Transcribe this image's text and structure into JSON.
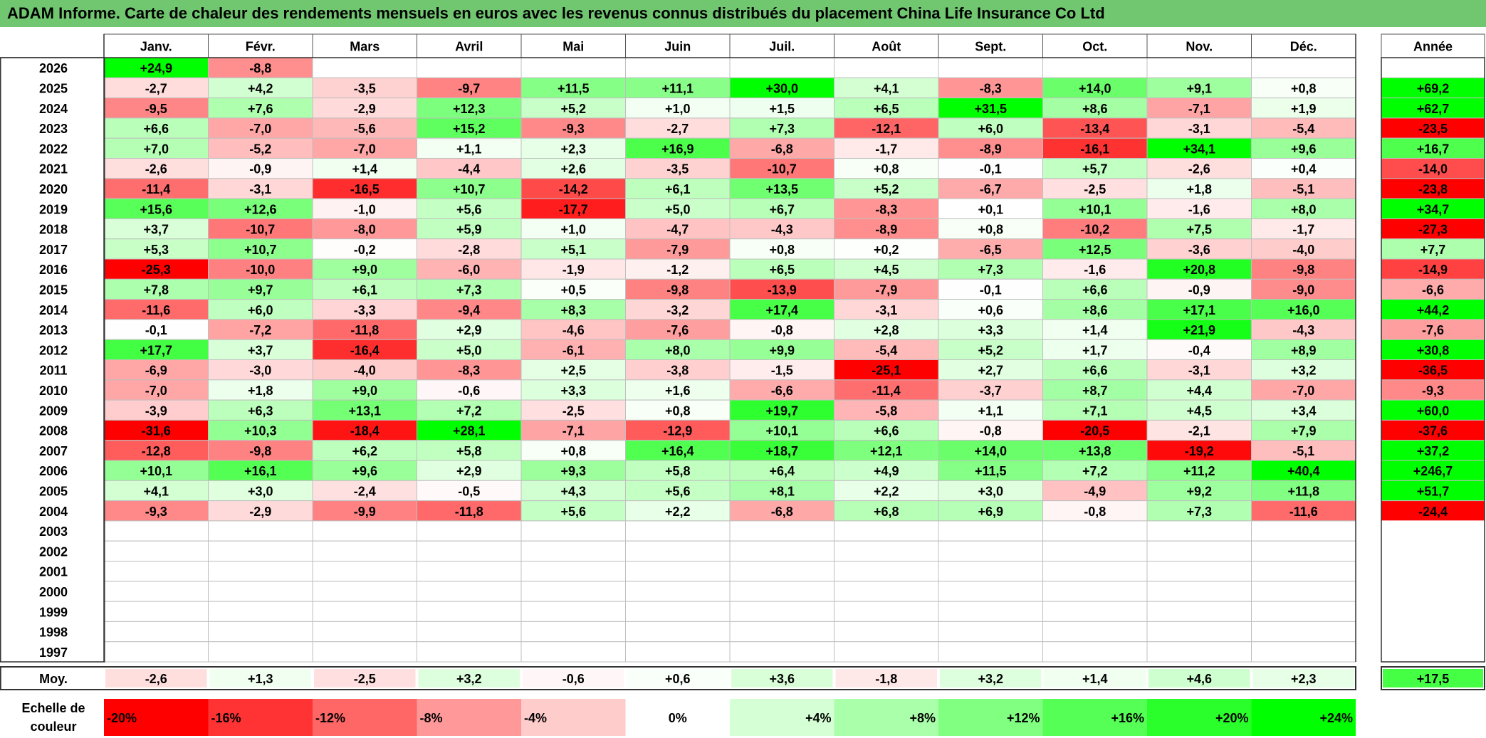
{
  "title": "ADAM Informe. Carte de chaleur des rendements mensuels en euros avec les revenus connus distribués du placement China Life Insurance Co Ltd",
  "chart_data": {
    "type": "heatmap",
    "title": "ADAM Informe. Carte de chaleur des rendements mensuels en euros avec les revenus connus distribués du placement China Life Insurance Co Ltd",
    "months": [
      "Janv.",
      "Févr.",
      "Mars",
      "Avril",
      "Mai",
      "Juin",
      "Juil.",
      "Août",
      "Sept.",
      "Oct.",
      "Nov.",
      "Déc."
    ],
    "year_header": "Année",
    "rows": [
      {
        "year": "2026",
        "values": [
          "+24,9",
          "-8,8",
          "",
          "",
          "",
          "",
          "",
          "",
          "",
          "",
          "",
          ""
        ],
        "annual": ""
      },
      {
        "year": "2025",
        "values": [
          "-2,7",
          "+4,2",
          "-3,5",
          "-9,7",
          "+11,5",
          "+11,1",
          "+30,0",
          "+4,1",
          "-8,3",
          "+14,0",
          "+9,1",
          "+0,8"
        ],
        "annual": "+69,2"
      },
      {
        "year": "2024",
        "values": [
          "-9,5",
          "+7,6",
          "-2,9",
          "+12,3",
          "+5,2",
          "+1,0",
          "+1,5",
          "+6,5",
          "+31,5",
          "+8,6",
          "-7,1",
          "+1,9"
        ],
        "annual": "+62,7"
      },
      {
        "year": "2023",
        "values": [
          "+6,6",
          "-7,0",
          "-5,6",
          "+15,2",
          "-9,3",
          "-2,7",
          "+7,3",
          "-12,1",
          "+6,0",
          "-13,4",
          "-3,1",
          "-5,4"
        ],
        "annual": "-23,5"
      },
      {
        "year": "2022",
        "values": [
          "+7,0",
          "-5,2",
          "-7,0",
          "+1,1",
          "+2,3",
          "+16,9",
          "-6,8",
          "-1,7",
          "-8,9",
          "-16,1",
          "+34,1",
          "+9,6"
        ],
        "annual": "+16,7"
      },
      {
        "year": "2021",
        "values": [
          "-2,6",
          "-0,9",
          "+1,4",
          "-4,4",
          "+2,6",
          "-3,5",
          "-10,7",
          "+0,8",
          "-0,1",
          "+5,7",
          "-2,6",
          "+0,4"
        ],
        "annual": "-14,0"
      },
      {
        "year": "2020",
        "values": [
          "-11,4",
          "-3,1",
          "-16,5",
          "+10,7",
          "-14,2",
          "+6,1",
          "+13,5",
          "+5,2",
          "-6,7",
          "-2,5",
          "+1,8",
          "-5,1"
        ],
        "annual": "-23,8"
      },
      {
        "year": "2019",
        "values": [
          "+15,6",
          "+12,6",
          "-1,0",
          "+5,6",
          "-17,7",
          "+5,0",
          "+6,7",
          "-8,3",
          "+0,1",
          "+10,1",
          "-1,6",
          "+8,0"
        ],
        "annual": "+34,7"
      },
      {
        "year": "2018",
        "values": [
          "+3,7",
          "-10,7",
          "-8,0",
          "+5,9",
          "+1,0",
          "-4,7",
          "-4,3",
          "-8,9",
          "+0,8",
          "-10,2",
          "+7,5",
          "-1,7"
        ],
        "annual": "-27,3"
      },
      {
        "year": "2017",
        "values": [
          "+5,3",
          "+10,7",
          "-0,2",
          "-2,8",
          "+5,1",
          "-7,9",
          "+0,8",
          "+0,2",
          "-6,5",
          "+12,5",
          "-3,6",
          "-4,0"
        ],
        "annual": "+7,7"
      },
      {
        "year": "2016",
        "values": [
          "-25,3",
          "-10,0",
          "+9,0",
          "-6,0",
          "-1,9",
          "-1,2",
          "+6,5",
          "+4,5",
          "+7,3",
          "-1,6",
          "+20,8",
          "-9,8"
        ],
        "annual": "-14,9"
      },
      {
        "year": "2015",
        "values": [
          "+7,8",
          "+9,7",
          "+6,1",
          "+7,3",
          "+0,5",
          "-9,8",
          "-13,9",
          "-7,9",
          "-0,1",
          "+6,6",
          "-0,9",
          "-9,0"
        ],
        "annual": "-6,6"
      },
      {
        "year": "2014",
        "values": [
          "-11,6",
          "+6,0",
          "-3,3",
          "-9,4",
          "+8,3",
          "-3,2",
          "+17,4",
          "-3,1",
          "+0,6",
          "+8,6",
          "+17,1",
          "+16,0"
        ],
        "annual": "+44,2"
      },
      {
        "year": "2013",
        "values": [
          "-0,1",
          "-7,2",
          "-11,8",
          "+2,9",
          "-4,6",
          "-7,6",
          "-0,8",
          "+2,8",
          "+3,3",
          "+1,4",
          "+21,9",
          "-4,3"
        ],
        "annual": "-7,6"
      },
      {
        "year": "2012",
        "values": [
          "+17,7",
          "+3,7",
          "-16,4",
          "+5,0",
          "-6,1",
          "+8,0",
          "+9,9",
          "-5,4",
          "+5,2",
          "+1,7",
          "-0,4",
          "+8,9"
        ],
        "annual": "+30,8"
      },
      {
        "year": "2011",
        "values": [
          "-6,9",
          "-3,0",
          "-4,0",
          "-8,3",
          "+2,5",
          "-3,8",
          "-1,5",
          "-25,1",
          "+2,7",
          "+6,6",
          "-3,1",
          "+3,2"
        ],
        "annual": "-36,5"
      },
      {
        "year": "2010",
        "values": [
          "-7,0",
          "+1,8",
          "+9,0",
          "-0,6",
          "+3,3",
          "+1,6",
          "-6,6",
          "-11,4",
          "-3,7",
          "+8,7",
          "+4,4",
          "-7,0"
        ],
        "annual": "-9,3"
      },
      {
        "year": "2009",
        "values": [
          "-3,9",
          "+6,3",
          "+13,1",
          "+7,2",
          "-2,5",
          "+0,8",
          "+19,7",
          "-5,8",
          "+1,1",
          "+7,1",
          "+4,5",
          "+3,4"
        ],
        "annual": "+60,0"
      },
      {
        "year": "2008",
        "values": [
          "-31,6",
          "+10,3",
          "-18,4",
          "+28,1",
          "-7,1",
          "-12,9",
          "+10,1",
          "+6,6",
          "-0,8",
          "-20,5",
          "-2,1",
          "+7,9"
        ],
        "annual": "-37,6"
      },
      {
        "year": "2007",
        "values": [
          "-12,8",
          "-9,8",
          "+6,2",
          "+5,8",
          "+0,8",
          "+16,4",
          "+18,7",
          "+12,1",
          "+14,0",
          "+13,8",
          "-19,2",
          "-5,1"
        ],
        "annual": "+37,2"
      },
      {
        "year": "2006",
        "values": [
          "+10,1",
          "+16,1",
          "+9,6",
          "+2,9",
          "+9,3",
          "+5,8",
          "+6,4",
          "+4,9",
          "+11,5",
          "+7,2",
          "+11,2",
          "+40,4"
        ],
        "annual": "+246,7"
      },
      {
        "year": "2005",
        "values": [
          "+4,1",
          "+3,0",
          "-2,4",
          "-0,5",
          "+4,3",
          "+5,6",
          "+8,1",
          "+2,2",
          "+3,0",
          "-4,9",
          "+9,2",
          "+11,8"
        ],
        "annual": "+51,7"
      },
      {
        "year": "2004",
        "values": [
          "-9,3",
          "-2,9",
          "-9,9",
          "-11,8",
          "+5,6",
          "+2,2",
          "-6,8",
          "+6,8",
          "+6,9",
          "-0,8",
          "+7,3",
          "-11,6"
        ],
        "annual": "-24,4"
      },
      {
        "year": "2003",
        "values": [
          "",
          "",
          "",
          "",
          "",
          "",
          "",
          "",
          "",
          "",
          "",
          ""
        ],
        "annual": ""
      },
      {
        "year": "2002",
        "values": [
          "",
          "",
          "",
          "",
          "",
          "",
          "",
          "",
          "",
          "",
          "",
          ""
        ],
        "annual": ""
      },
      {
        "year": "2001",
        "values": [
          "",
          "",
          "",
          "",
          "",
          "",
          "",
          "",
          "",
          "",
          "",
          ""
        ],
        "annual": ""
      },
      {
        "year": "2000",
        "values": [
          "",
          "",
          "",
          "",
          "",
          "",
          "",
          "",
          "",
          "",
          "",
          ""
        ],
        "annual": ""
      },
      {
        "year": "1999",
        "values": [
          "",
          "",
          "",
          "",
          "",
          "",
          "",
          "",
          "",
          "",
          "",
          ""
        ],
        "annual": ""
      },
      {
        "year": "1998",
        "values": [
          "",
          "",
          "",
          "",
          "",
          "",
          "",
          "",
          "",
          "",
          "",
          ""
        ],
        "annual": ""
      },
      {
        "year": "1997",
        "values": [
          "",
          "",
          "",
          "",
          "",
          "",
          "",
          "",
          "",
          "",
          "",
          ""
        ],
        "annual": ""
      }
    ],
    "average": {
      "label": "Moy.",
      "values": [
        "-2,6",
        "+1,3",
        "-2,5",
        "+3,2",
        "-0,6",
        "+0,6",
        "+3,6",
        "-1,8",
        "+3,2",
        "+1,4",
        "+4,6",
        "+2,3"
      ],
      "annual": "+17,5"
    },
    "scale": {
      "label_line1": "Echelle de",
      "label_line2": "couleur",
      "items": [
        {
          "label": "-20%",
          "value": -20
        },
        {
          "label": "-16%",
          "value": -16
        },
        {
          "label": "-12%",
          "value": -12
        },
        {
          "label": "-8%",
          "value": -8
        },
        {
          "label": "-4%",
          "value": -4
        },
        {
          "label": "0%",
          "value": 0
        },
        {
          "label": "+4%",
          "value": 4
        },
        {
          "label": "+8%",
          "value": 8
        },
        {
          "label": "+12%",
          "value": 12
        },
        {
          "label": "+16%",
          "value": 16
        },
        {
          "label": "+20%",
          "value": 20
        },
        {
          "label": "+24%",
          "value": 24
        }
      ]
    },
    "colors": {
      "negative_max": "#ff0000",
      "positive_max": "#00ff00",
      "neutral": "#ffffff",
      "title_background": "#70c770"
    },
    "color_limit_negative": -20,
    "color_limit_positive": 24
  }
}
